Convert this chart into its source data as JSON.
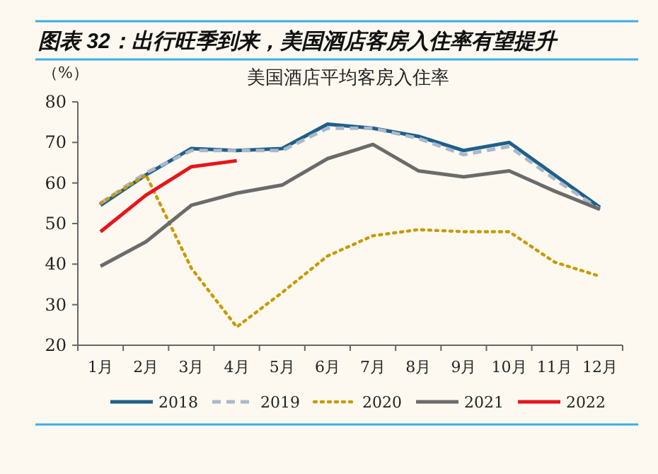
{
  "chart_data": {
    "type": "line",
    "title": "图表 32：出行旺季到来，美国酒店客房入住率有望提升",
    "subtitle": "美国酒店平均客房入住率",
    "ylabel": "（%）",
    "categories": [
      "1月",
      "2月",
      "3月",
      "4月",
      "5月",
      "6月",
      "7月",
      "8月",
      "9月",
      "10月",
      "11月",
      "12月"
    ],
    "ylim": [
      20,
      80
    ],
    "yticks": [
      20,
      30,
      40,
      50,
      60,
      70,
      80
    ],
    "grid": false,
    "legend": "bottom",
    "marker": "none",
    "series": [
      {
        "name": "2018",
        "color": "#1f5f8b",
        "line_style": "solid",
        "values": [
          54.5,
          62,
          68.5,
          68,
          68.5,
          74.5,
          73.5,
          71.5,
          68,
          70,
          62,
          54
        ]
      },
      {
        "name": "2019",
        "color": "#aab8cc",
        "line_style": "dashed",
        "values": [
          55,
          62.5,
          68,
          68,
          68,
          73.5,
          73.5,
          71,
          67,
          69,
          61,
          53.5
        ]
      },
      {
        "name": "2020",
        "color": "#c89a00",
        "line_style": "dotted",
        "values": [
          55,
          62,
          39,
          24.5,
          33,
          42,
          47,
          48.5,
          48,
          48,
          40.5,
          37
        ]
      },
      {
        "name": "2021",
        "color": "#6b6b6b",
        "line_style": "solid",
        "values": [
          39.5,
          45.5,
          54.5,
          57.5,
          59.5,
          66,
          69.5,
          63,
          61.5,
          63,
          58,
          53.5
        ]
      },
      {
        "name": "2022",
        "color": "#e8141c",
        "line_style": "solid",
        "values": [
          48,
          57,
          64,
          65.5,
          null,
          null,
          null,
          null,
          null,
          null,
          null,
          null
        ]
      }
    ]
  }
}
